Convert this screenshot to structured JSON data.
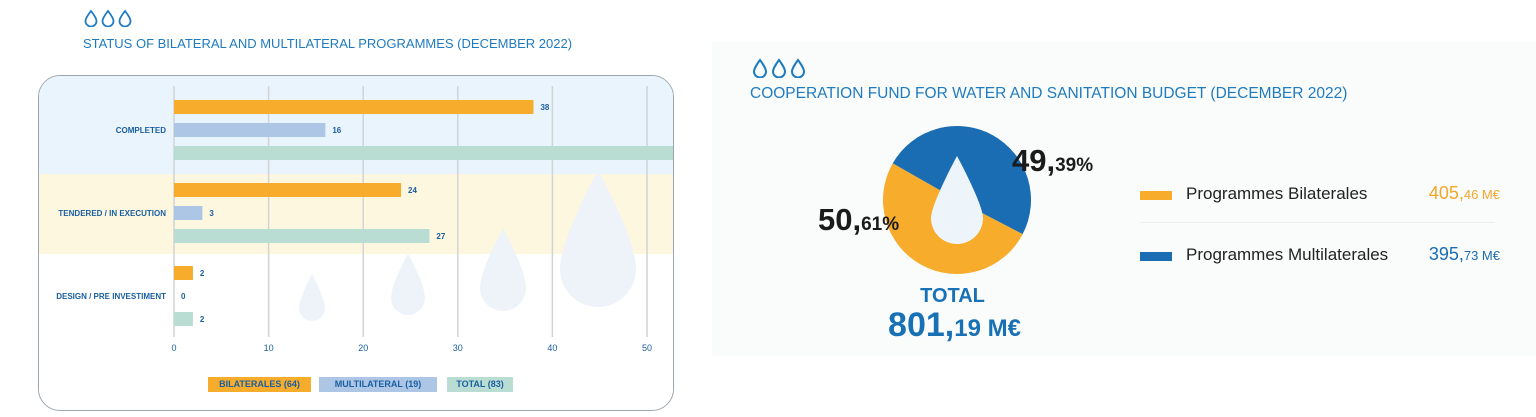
{
  "left_panel": {
    "icon": "water-drops-icon",
    "title": "STATUS OF BILATERAL AND MULTILATERAL PROGRAMMES (DECEMBER 2022)"
  },
  "right_panel": {
    "icon": "water-drops-icon",
    "title": "COOPERATION FUND FOR WATER AND SANITATION BUDGET (DECEMBER 2022)",
    "pct_multilateral_big": "49,",
    "pct_multilateral_small": "39%",
    "pct_bilateral_big": "50,",
    "pct_bilateral_small": "61%",
    "total_label": "TOTAL",
    "total_value_big": "801,",
    "total_value_small": "19 M€",
    "legend": [
      {
        "name": "Programmes Bilaterales",
        "amount_big": "405,",
        "amount_small": "46 M€",
        "color": "#f7ac2c"
      },
      {
        "name": "Programmes Multilaterales",
        "amount_big": "395,",
        "amount_small": "73 M€",
        "color": "#1b6db3"
      }
    ]
  },
  "colors": {
    "title_blue": "#1f7bbf",
    "bilateral": "#f7ac2c",
    "multilateral": "#adc6e6",
    "total": "#b9ddd2",
    "pie_bilateral": "#f7ac2c",
    "pie_multilateral": "#1b6db3"
  },
  "chart_data": [
    {
      "type": "bar",
      "orientation": "horizontal",
      "title": "STATUS OF BILATERAL AND MULTILATERAL PROGRAMMES (DECEMBER 2022)",
      "categories": [
        "COMPLETED",
        "TENDERED / IN EXECUTION",
        "DESIGN / PRE INVESTIMENT"
      ],
      "series": [
        {
          "name": "BILATERALES (64)",
          "values": [
            38,
            24,
            2
          ]
        },
        {
          "name": "MULTILATERAL (19)",
          "values": [
            16,
            3,
            0
          ]
        },
        {
          "name": "TOTAL (83)",
          "values": [
            54,
            27,
            2
          ]
        }
      ],
      "xlim": [
        0,
        50
      ],
      "x_ticks": [
        0,
        10,
        20,
        30,
        40,
        50
      ],
      "grid": true,
      "legend_position": "bottom"
    },
    {
      "type": "pie",
      "title": "COOPERATION FUND FOR WATER AND SANITATION BUDGET (DECEMBER 2022)",
      "labels": [
        "Programmes Bilaterales",
        "Programmes Multilaterales"
      ],
      "values": [
        405.46,
        395.73
      ],
      "percentages": [
        50.61,
        49.39
      ],
      "total": 801.19,
      "unit": "M€",
      "donut": false
    }
  ]
}
